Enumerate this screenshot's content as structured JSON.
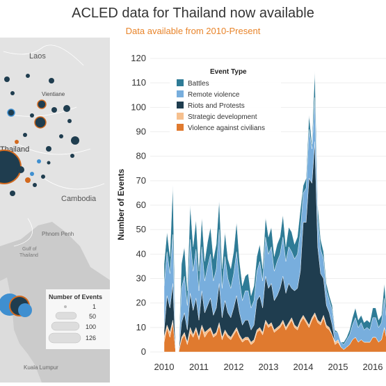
{
  "header": {
    "title": "ACLED data for Thailand now available",
    "subtitle": "Data available from 2010-Present"
  },
  "map": {
    "labels": {
      "laos": "Laos",
      "vientiane": "Vientiane",
      "thailand": "Thailand",
      "cambodia": "Cambodia",
      "phnom_penh": "Phnom Penh",
      "gulf_line1": "Gulf of",
      "gulf_line2": "Thailand",
      "kuala_lumpur": "Kuala Lumpur"
    },
    "size_legend": {
      "title": "Number of Events",
      "items": [
        "1",
        "50",
        "100",
        "126"
      ]
    },
    "colors": {
      "land": "#e3e3e3",
      "water": "#c9c9c9",
      "dot_dark": "#1f3d4f",
      "dot_orange": "#d2691e",
      "dot_blue": "#3f8fd0"
    }
  },
  "chart_data": {
    "type": "area",
    "ylabel": "Number of Events",
    "xlabel": "",
    "ylim": [
      0,
      120
    ],
    "yticks": [
      "0",
      "10",
      "20",
      "30",
      "40",
      "50",
      "60",
      "70",
      "80",
      "90",
      "100",
      "110",
      "120"
    ],
    "xticks": [
      "2010",
      "2011",
      "2012",
      "2013",
      "2014",
      "2015",
      "2016"
    ],
    "x_start": "2010-01",
    "x_visible_end": "2016-09",
    "legend": {
      "title": "Event Type",
      "placement": "top-left"
    },
    "series": [
      {
        "name": "Violence against civilians",
        "color": "#e07a2f",
        "values": [
          4,
          10,
          6,
          12,
          0,
          0,
          5,
          7,
          3,
          8,
          6,
          9,
          5,
          10,
          6,
          8,
          9,
          6,
          7,
          11,
          5,
          8,
          6,
          5,
          7,
          9,
          6,
          4,
          5,
          5,
          3,
          4,
          8,
          9,
          7,
          12,
          10,
          11,
          8,
          9,
          10,
          12,
          9,
          11,
          13,
          10,
          9,
          12,
          14,
          12,
          10,
          13,
          15,
          12,
          11,
          14,
          10,
          9,
          7,
          3,
          4,
          2,
          1,
          2,
          3,
          5,
          6,
          4,
          5,
          4,
          4,
          4,
          6,
          6,
          4,
          5,
          10,
          4,
          6,
          5,
          4,
          5
        ]
      },
      {
        "name": "Strategic development",
        "color": "#f6c08e",
        "values": [
          2,
          1,
          2,
          1,
          0,
          0,
          1,
          1,
          1,
          2,
          1,
          1,
          1,
          1,
          2,
          1,
          1,
          1,
          1,
          1,
          1,
          1,
          1,
          1,
          1,
          1,
          1,
          1,
          1,
          1,
          1,
          1,
          1,
          1,
          1,
          1,
          1,
          1,
          1,
          1,
          1,
          1,
          1,
          1,
          1,
          1,
          1,
          1,
          1,
          1,
          1,
          1,
          1,
          1,
          1,
          1,
          1,
          1,
          0,
          1,
          1,
          0,
          0,
          0,
          0,
          0,
          0,
          0,
          0,
          0,
          0,
          0,
          0,
          0,
          0,
          0,
          0,
          0,
          0,
          0,
          0,
          0
        ]
      },
      {
        "name": "Riots and Protests",
        "color": "#1f3d4f",
        "values": [
          3,
          12,
          10,
          15,
          0,
          0,
          6,
          8,
          5,
          14,
          10,
          12,
          7,
          14,
          8,
          10,
          12,
          8,
          10,
          16,
          8,
          12,
          9,
          8,
          10,
          13,
          9,
          6,
          7,
          7,
          5,
          6,
          12,
          13,
          10,
          18,
          15,
          16,
          12,
          13,
          15,
          18,
          14,
          16,
          12,
          14,
          16,
          20,
          38,
          40,
          60,
          55,
          70,
          30,
          20,
          15,
          8,
          6,
          4,
          0,
          0,
          0,
          0,
          0,
          0,
          0,
          0,
          0,
          0,
          0,
          0,
          0,
          0,
          0,
          0,
          0,
          0,
          0,
          0,
          0,
          0,
          0
        ]
      },
      {
        "name": "Remote violence",
        "color": "#78aedd",
        "values": [
          18,
          18,
          14,
          20,
          0,
          0,
          14,
          15,
          10,
          22,
          16,
          20,
          12,
          18,
          13,
          16,
          18,
          14,
          16,
          22,
          12,
          18,
          14,
          12,
          14,
          18,
          13,
          10,
          12,
          12,
          9,
          10,
          12,
          14,
          11,
          16,
          14,
          15,
          12,
          14,
          14,
          16,
          13,
          15,
          15,
          13,
          14,
          16,
          12,
          14,
          20,
          14,
          18,
          12,
          10,
          8,
          6,
          5,
          6,
          4,
          3,
          2,
          2,
          3,
          4,
          6,
          8,
          6,
          7,
          5,
          6,
          5,
          8,
          8,
          6,
          7,
          12,
          6,
          8,
          7,
          6,
          8
        ]
      },
      {
        "name": "Battles",
        "color": "#2e7b96",
        "values": [
          9,
          8,
          7,
          20,
          0,
          0,
          10,
          12,
          6,
          14,
          10,
          12,
          8,
          12,
          8,
          10,
          11,
          9,
          10,
          12,
          8,
          10,
          8,
          8,
          9,
          12,
          8,
          6,
          6,
          7,
          5,
          6,
          6,
          7,
          5,
          8,
          7,
          8,
          6,
          7,
          7,
          9,
          6,
          8,
          8,
          6,
          7,
          9,
          3,
          4,
          6,
          2,
          11,
          5,
          4,
          3,
          3,
          2,
          2,
          1,
          0,
          0,
          1,
          1,
          2,
          3,
          4,
          3,
          3,
          3,
          3,
          3,
          4,
          4,
          3,
          3,
          6,
          3,
          4,
          3,
          3,
          4
        ]
      }
    ]
  }
}
